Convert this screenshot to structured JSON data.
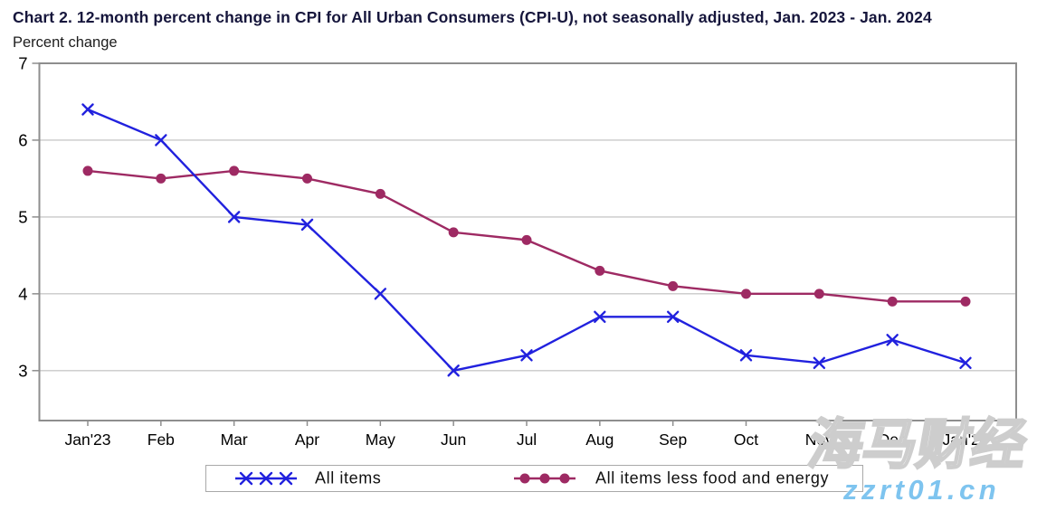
{
  "header": {
    "title": "Chart 2. 12-month percent change in CPI for All Urban Consumers (CPI-U), not seasonally adjusted, Jan. 2023 - Jan. 2024",
    "subtitle": "Percent change"
  },
  "chart_data": {
    "type": "line",
    "title": "Chart 2. 12-month percent change in CPI for All Urban Consumers (CPI-U), not seasonally adjusted, Jan. 2023 - Jan. 2024",
    "ylabel": "Percent change",
    "categories": [
      "Jan'23",
      "Feb",
      "Mar",
      "Apr",
      "May",
      "Jun",
      "Jul",
      "Aug",
      "Sep",
      "Oct",
      "Nov",
      "Dec",
      "Jan'24"
    ],
    "series": [
      {
        "name": "All items",
        "marker": "x",
        "color": "#2121DE",
        "values": [
          6.4,
          6.0,
          5.0,
          4.9,
          4.0,
          3.0,
          3.2,
          3.7,
          3.7,
          3.2,
          3.1,
          3.4,
          3.1
        ]
      },
      {
        "name": "All items less food and energy",
        "marker": "circle",
        "color": "#9E2A63",
        "values": [
          5.6,
          5.5,
          5.6,
          5.5,
          5.3,
          4.8,
          4.7,
          4.3,
          4.1,
          4.0,
          4.0,
          3.9,
          3.9
        ]
      }
    ],
    "yticks": [
      7,
      6,
      5,
      4,
      3
    ],
    "ylim": [
      2.35,
      7
    ],
    "grid": true,
    "legend_position": "bottom-center",
    "grid_color": "#c9c9c9",
    "border_color": "#8e8e8e",
    "tick_label_color": "#000000"
  },
  "watermark": {
    "text_cn": "海马财经",
    "text_url": "zzrt01.cn",
    "url_color": "#7EC4EF"
  }
}
